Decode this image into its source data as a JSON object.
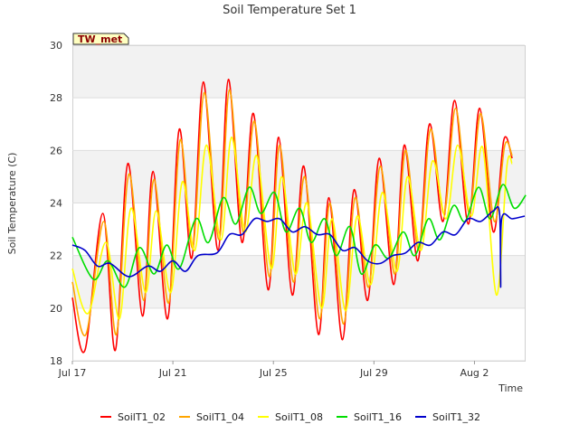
{
  "chart_data": {
    "type": "line",
    "title": "Soil Temperature Set 1",
    "xlabel": "Time",
    "ylabel": "Soil Temperature (C)",
    "badge": "TW_met",
    "ylim": [
      18,
      30
    ],
    "xlim": [
      "2023-07-17",
      "2023-08-04"
    ],
    "y_ticks": [
      "18",
      "20",
      "22",
      "24",
      "26",
      "28",
      "30"
    ],
    "x_ticks": [
      {
        "date": "2023-07-17",
        "label": "Jul 17"
      },
      {
        "date": "2023-07-21",
        "label": "Jul 21"
      },
      {
        "date": "2023-07-25",
        "label": "Jul 25"
      },
      {
        "date": "2023-07-29",
        "label": "Jul 29"
      },
      {
        "date": "2023-08-02",
        "label": "Aug 2"
      }
    ],
    "grid": "horizontal bands",
    "legend_position": "bottom",
    "series": [
      {
        "name": "SoilT1_02",
        "color": "#ff0000",
        "points": [
          [
            "2023-07-17",
            20.4
          ],
          [
            "2023-07-17T12:00",
            18.4
          ],
          [
            "2023-07-18T05:00",
            23.6
          ],
          [
            "2023-07-18T17:00",
            18.4
          ],
          [
            "2023-07-19T05:00",
            25.5
          ],
          [
            "2023-07-19T19:00",
            19.7
          ],
          [
            "2023-07-20T05:00",
            25.2
          ],
          [
            "2023-07-20T19:00",
            19.6
          ],
          [
            "2023-07-21T06:00",
            26.8
          ],
          [
            "2023-07-21T18:00",
            21.9
          ],
          [
            "2023-07-22T05:00",
            28.6
          ],
          [
            "2023-07-22T19:00",
            22.2
          ],
          [
            "2023-07-23T05:00",
            28.7
          ],
          [
            "2023-07-23T18:00",
            22.5
          ],
          [
            "2023-07-24T05:00",
            27.4
          ],
          [
            "2023-07-24T19:00",
            20.7
          ],
          [
            "2023-07-25T05:00",
            26.5
          ],
          [
            "2023-07-25T18:00",
            20.5
          ],
          [
            "2023-07-26T05:00",
            25.4
          ],
          [
            "2023-07-26T19:00",
            19.0
          ],
          [
            "2023-07-27T05:00",
            24.2
          ],
          [
            "2023-07-27T18:00",
            18.8
          ],
          [
            "2023-07-28T05:00",
            24.5
          ],
          [
            "2023-07-28T18:00",
            20.3
          ],
          [
            "2023-07-29T05:00",
            25.7
          ],
          [
            "2023-07-29T19:00",
            20.9
          ],
          [
            "2023-07-30T05:00",
            26.2
          ],
          [
            "2023-07-30T18:00",
            21.8
          ],
          [
            "2023-07-31T05:00",
            27.0
          ],
          [
            "2023-07-31T18:00",
            23.3
          ],
          [
            "2023-08-01T05:00",
            27.9
          ],
          [
            "2023-08-01T18:00",
            23.2
          ],
          [
            "2023-08-02T05:00",
            27.6
          ],
          [
            "2023-08-02T18:00",
            22.9
          ],
          [
            "2023-08-03T04:00",
            26.4
          ],
          [
            "2023-08-03T12:00",
            25.7
          ]
        ]
      },
      {
        "name": "SoilT1_04",
        "color": "#ffa500",
        "points": [
          [
            "2023-07-17",
            21.0
          ],
          [
            "2023-07-17T13:00",
            19.0
          ],
          [
            "2023-07-18T06:00",
            23.3
          ],
          [
            "2023-07-18T18:00",
            19.0
          ],
          [
            "2023-07-19T06:00",
            25.1
          ],
          [
            "2023-07-19T20:00",
            20.3
          ],
          [
            "2023-07-20T06:00",
            24.9
          ],
          [
            "2023-07-20T20:00",
            20.2
          ],
          [
            "2023-07-21T07:00",
            26.4
          ],
          [
            "2023-07-21T19:00",
            22.3
          ],
          [
            "2023-07-22T06:00",
            28.2
          ],
          [
            "2023-07-22T20:00",
            22.6
          ],
          [
            "2023-07-23T06:00",
            28.3
          ],
          [
            "2023-07-23T19:00",
            22.9
          ],
          [
            "2023-07-24T06:00",
            27.1
          ],
          [
            "2023-07-24T20:00",
            21.2
          ],
          [
            "2023-07-25T06:00",
            26.2
          ],
          [
            "2023-07-25T19:00",
            21.0
          ],
          [
            "2023-07-26T06:00",
            25.0
          ],
          [
            "2023-07-26T20:00",
            19.6
          ],
          [
            "2023-07-27T06:00",
            24.0
          ],
          [
            "2023-07-27T19:00",
            19.4
          ],
          [
            "2023-07-28T06:00",
            24.2
          ],
          [
            "2023-07-28T19:00",
            20.8
          ],
          [
            "2023-07-29T06:00",
            25.4
          ],
          [
            "2023-07-29T20:00",
            21.3
          ],
          [
            "2023-07-30T06:00",
            26.0
          ],
          [
            "2023-07-30T19:00",
            22.2
          ],
          [
            "2023-07-31T06:00",
            26.8
          ],
          [
            "2023-07-31T19:00",
            23.6
          ],
          [
            "2023-08-01T06:00",
            27.6
          ],
          [
            "2023-08-01T19:00",
            23.6
          ],
          [
            "2023-08-02T06:00",
            27.4
          ],
          [
            "2023-08-02T19:00",
            23.3
          ],
          [
            "2023-08-03T05:00",
            26.2
          ],
          [
            "2023-08-03T12:00",
            25.8
          ]
        ]
      },
      {
        "name": "SoilT1_08",
        "color": "#ffff00",
        "points": [
          [
            "2023-07-17",
            21.5
          ],
          [
            "2023-07-17T15:00",
            19.8
          ],
          [
            "2023-07-18T08:00",
            22.5
          ],
          [
            "2023-07-18T21:00",
            19.6
          ],
          [
            "2023-07-19T08:00",
            23.8
          ],
          [
            "2023-07-19T22:00",
            20.6
          ],
          [
            "2023-07-20T08:00",
            23.7
          ],
          [
            "2023-07-20T22:00",
            20.6
          ],
          [
            "2023-07-21T09:00",
            24.8
          ],
          [
            "2023-07-21T21:00",
            22.2
          ],
          [
            "2023-07-22T08:00",
            26.2
          ],
          [
            "2023-07-22T22:00",
            22.6
          ],
          [
            "2023-07-23T08:00",
            26.5
          ],
          [
            "2023-07-23T21:00",
            22.9
          ],
          [
            "2023-07-24T08:00",
            25.8
          ],
          [
            "2023-07-24T22:00",
            21.5
          ],
          [
            "2023-07-25T08:00",
            25.0
          ],
          [
            "2023-07-25T21:00",
            21.3
          ],
          [
            "2023-07-26T08:00",
            24.0
          ],
          [
            "2023-07-26T22:00",
            20.0
          ],
          [
            "2023-07-27T08:00",
            23.4
          ],
          [
            "2023-07-27T21:00",
            19.9
          ],
          [
            "2023-07-28T08:00",
            23.5
          ],
          [
            "2023-07-28T21:00",
            20.9
          ],
          [
            "2023-07-29T08:00",
            24.4
          ],
          [
            "2023-07-29T22:00",
            21.4
          ],
          [
            "2023-07-30T08:00",
            25.0
          ],
          [
            "2023-07-30T21:00",
            22.2
          ],
          [
            "2023-07-31T08:00",
            25.6
          ],
          [
            "2023-07-31T21:00",
            23.4
          ],
          [
            "2023-08-01T08:00",
            26.2
          ],
          [
            "2023-08-01T21:00",
            23.5
          ],
          [
            "2023-08-02T08:00",
            26.1
          ],
          [
            "2023-08-02T21:00",
            20.5
          ],
          [
            "2023-08-03T07:00",
            25.4
          ],
          [
            "2023-08-03T12:00",
            25.5
          ]
        ]
      },
      {
        "name": "SoilT1_16",
        "color": "#00dd00",
        "points": [
          [
            "2023-07-17",
            22.7
          ],
          [
            "2023-07-17T20:00",
            21.1
          ],
          [
            "2023-07-18T10:00",
            21.8
          ],
          [
            "2023-07-19T02:00",
            20.8
          ],
          [
            "2023-07-19T16:00",
            22.3
          ],
          [
            "2023-07-20T06:00",
            21.3
          ],
          [
            "2023-07-20T18:00",
            22.4
          ],
          [
            "2023-07-21T06:00",
            21.5
          ],
          [
            "2023-07-21T22:00",
            23.4
          ],
          [
            "2023-07-22T10:00",
            22.5
          ],
          [
            "2023-07-23T00:00",
            24.2
          ],
          [
            "2023-07-23T12:00",
            23.2
          ],
          [
            "2023-07-24T01:00",
            24.6
          ],
          [
            "2023-07-24T12:00",
            23.6
          ],
          [
            "2023-07-25T01:00",
            24.4
          ],
          [
            "2023-07-25T12:00",
            22.9
          ],
          [
            "2023-07-26T01:00",
            23.8
          ],
          [
            "2023-07-26T12:00",
            22.5
          ],
          [
            "2023-07-27T01:00",
            23.4
          ],
          [
            "2023-07-27T12:00",
            22.0
          ],
          [
            "2023-07-28T01:00",
            23.1
          ],
          [
            "2023-07-28T12:00",
            21.3
          ],
          [
            "2023-07-29T01:00",
            22.4
          ],
          [
            "2023-07-29T14:00",
            21.9
          ],
          [
            "2023-07-30T04:00",
            22.9
          ],
          [
            "2023-07-30T15:00",
            22.0
          ],
          [
            "2023-07-31T04:00",
            23.4
          ],
          [
            "2023-07-31T15:00",
            22.6
          ],
          [
            "2023-08-01T04:00",
            23.9
          ],
          [
            "2023-08-01T15:00",
            23.3
          ],
          [
            "2023-08-02T04:00",
            24.6
          ],
          [
            "2023-08-02T15:00",
            23.4
          ],
          [
            "2023-08-03T03:00",
            24.7
          ],
          [
            "2023-08-03T14:00",
            23.8
          ],
          [
            "2023-08-04T01:00",
            24.3
          ]
        ]
      },
      {
        "name": "SoilT1_32",
        "color": "#0000cc",
        "points": [
          [
            "2023-07-17",
            22.4
          ],
          [
            "2023-07-17T12:00",
            22.2
          ],
          [
            "2023-07-18T00:00",
            21.6
          ],
          [
            "2023-07-18T12:00",
            21.7
          ],
          [
            "2023-07-19T06:00",
            21.2
          ],
          [
            "2023-07-20T00:00",
            21.6
          ],
          [
            "2023-07-20T12:00",
            21.4
          ],
          [
            "2023-07-21T00:00",
            21.8
          ],
          [
            "2023-07-21T12:00",
            21.4
          ],
          [
            "2023-07-22T00:00",
            22.0
          ],
          [
            "2023-07-22T18:00",
            22.1
          ],
          [
            "2023-07-23T06:00",
            22.8
          ],
          [
            "2023-07-23T18:00",
            22.8
          ],
          [
            "2023-07-24T06:00",
            23.4
          ],
          [
            "2023-07-24T18:00",
            23.3
          ],
          [
            "2023-07-25T06:00",
            23.4
          ],
          [
            "2023-07-25T18:00",
            22.9
          ],
          [
            "2023-07-26T06:00",
            23.1
          ],
          [
            "2023-07-26T18:00",
            22.8
          ],
          [
            "2023-07-27T06:00",
            22.8
          ],
          [
            "2023-07-27T18:00",
            22.2
          ],
          [
            "2023-07-28T06:00",
            22.3
          ],
          [
            "2023-07-28T18:00",
            21.8
          ],
          [
            "2023-07-29T06:00",
            21.7
          ],
          [
            "2023-07-29T18:00",
            22.0
          ],
          [
            "2023-07-30T06:00",
            22.1
          ],
          [
            "2023-07-30T18:00",
            22.5
          ],
          [
            "2023-07-31T06:00",
            22.4
          ],
          [
            "2023-07-31T18:00",
            22.9
          ],
          [
            "2023-08-01T06:00",
            22.8
          ],
          [
            "2023-08-01T18:00",
            23.4
          ],
          [
            "2023-08-02T06:00",
            23.3
          ],
          [
            "2023-08-02T18:00",
            23.7
          ],
          [
            "2023-08-03T00:00",
            23.6
          ],
          [
            "2023-08-03T01:00",
            20.8
          ],
          [
            "2023-08-03T02:00",
            23.4
          ],
          [
            "2023-08-03T12:00",
            23.4
          ],
          [
            "2023-08-04T00:00",
            23.5
          ]
        ]
      }
    ]
  }
}
